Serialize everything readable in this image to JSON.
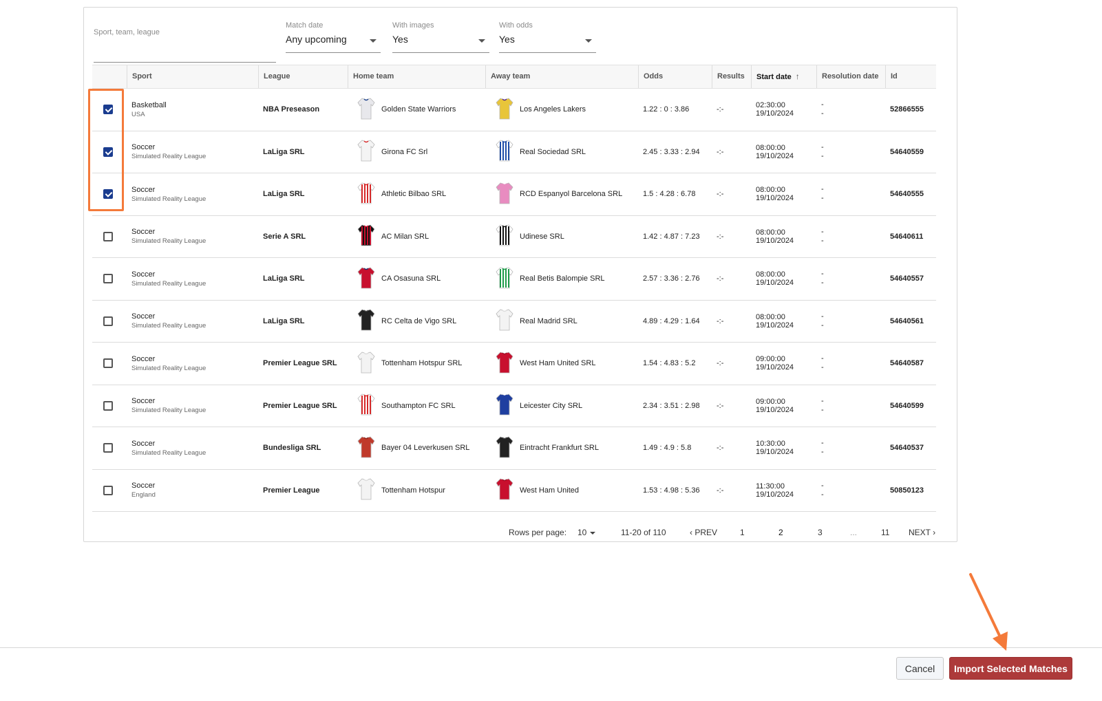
{
  "filters": {
    "search_placeholder": "Sport, team, league",
    "match_date_label": "Match date",
    "match_date_value": "Any upcoming",
    "with_images_label": "With images",
    "with_images_value": "Yes",
    "with_odds_label": "With odds",
    "with_odds_value": "Yes"
  },
  "columns": [
    "Sport",
    "League",
    "Home team",
    "Away team",
    "Odds",
    "Results",
    "Start date",
    "Resolution date",
    "Id"
  ],
  "rows": [
    {
      "checked": true,
      "sport": "Basketball",
      "region": "USA",
      "league": "NBA Preseason",
      "home": "Golden State Warriors",
      "away": "Los Angeles Lakers",
      "odds": "1.22 : 0 : 3.86",
      "results": "-:-",
      "time": "02:30:00",
      "date": "19/10/2024",
      "res1": "-",
      "res2": "-",
      "id": "52866555",
      "home_kit": "gsw",
      "away_kit": "lakers"
    },
    {
      "checked": true,
      "sport": "Soccer",
      "region": "Simulated Reality League",
      "league": "LaLiga SRL",
      "home": "Girona FC Srl",
      "away": "Real Sociedad SRL",
      "odds": "2.45 : 3.33 : 2.94",
      "results": "-:-",
      "time": "08:00:00",
      "date": "19/10/2024",
      "res1": "-",
      "res2": "-",
      "id": "54640559",
      "home_kit": "white-red",
      "away_kit": "blue-stripes"
    },
    {
      "checked": true,
      "sport": "Soccer",
      "region": "Simulated Reality League",
      "league": "LaLiga SRL",
      "home": "Athletic Bilbao SRL",
      "away": "RCD Espanyol Barcelona SRL",
      "odds": "1.5 : 4.28 : 6.78",
      "results": "-:-",
      "time": "08:00:00",
      "date": "19/10/2024",
      "res1": "-",
      "res2": "-",
      "id": "54640555",
      "home_kit": "red-stripes",
      "away_kit": "pink"
    },
    {
      "checked": false,
      "sport": "Soccer",
      "region": "Simulated Reality League",
      "league": "Serie A SRL",
      "home": "AC Milan SRL",
      "away": "Udinese SRL",
      "odds": "1.42 : 4.87 : 7.23",
      "results": "-:-",
      "time": "08:00:00",
      "date": "19/10/2024",
      "res1": "-",
      "res2": "-",
      "id": "54640611",
      "home_kit": "milan",
      "away_kit": "black-white"
    },
    {
      "checked": false,
      "sport": "Soccer",
      "region": "Simulated Reality League",
      "league": "LaLiga SRL",
      "home": "CA Osasuna SRL",
      "away": "Real Betis Balompie SRL",
      "odds": "2.57 : 3.36 : 2.76",
      "results": "-:-",
      "time": "08:00:00",
      "date": "19/10/2024",
      "res1": "-",
      "res2": "-",
      "id": "54640557",
      "home_kit": "osasuna",
      "away_kit": "green-stripes"
    },
    {
      "checked": false,
      "sport": "Soccer",
      "region": "Simulated Reality League",
      "league": "LaLiga SRL",
      "home": "RC Celta de Vigo SRL",
      "away": "Real Madrid SRL",
      "odds": "4.89 : 4.29 : 1.64",
      "results": "-:-",
      "time": "08:00:00",
      "date": "19/10/2024",
      "res1": "-",
      "res2": "-",
      "id": "54640561",
      "home_kit": "black",
      "away_kit": "white"
    },
    {
      "checked": false,
      "sport": "Soccer",
      "region": "Simulated Reality League",
      "league": "Premier League SRL",
      "home": "Tottenham Hotspur SRL",
      "away": "West Ham United SRL",
      "odds": "1.54 : 4.83 : 5.2",
      "results": "-:-",
      "time": "09:00:00",
      "date": "19/10/2024",
      "res1": "-",
      "res2": "-",
      "id": "54640587",
      "home_kit": "white",
      "away_kit": "red"
    },
    {
      "checked": false,
      "sport": "Soccer",
      "region": "Simulated Reality League",
      "league": "Premier League SRL",
      "home": "Southampton FC SRL",
      "away": "Leicester City SRL",
      "odds": "2.34 : 3.51 : 2.98",
      "results": "-:-",
      "time": "09:00:00",
      "date": "19/10/2024",
      "res1": "-",
      "res2": "-",
      "id": "54640599",
      "home_kit": "red-stripes",
      "away_kit": "blue"
    },
    {
      "checked": false,
      "sport": "Soccer",
      "region": "Simulated Reality League",
      "league": "Bundesliga SRL",
      "home": "Bayer 04 Leverkusen SRL",
      "away": "Eintracht Frankfurt SRL",
      "odds": "1.49 : 4.9 : 5.8",
      "results": "-:-",
      "time": "10:30:00",
      "date": "19/10/2024",
      "res1": "-",
      "res2": "-",
      "id": "54640537",
      "home_kit": "darkred",
      "away_kit": "black"
    },
    {
      "checked": false,
      "sport": "Soccer",
      "region": "England",
      "league": "Premier League",
      "home": "Tottenham Hotspur",
      "away": "West Ham United",
      "odds": "1.53 : 4.98 : 5.36",
      "results": "-:-",
      "time": "11:30:00",
      "date": "19/10/2024",
      "res1": "-",
      "res2": "-",
      "id": "50850123",
      "home_kit": "white",
      "away_kit": "red"
    }
  ],
  "pagination": {
    "rows_per_page_label": "Rows per page:",
    "rows_per_page": "10",
    "range": "11-20 of 110",
    "prev": "PREV",
    "pages": [
      "1",
      "2",
      "3",
      "...",
      "11"
    ],
    "current": "2",
    "next": "NEXT"
  },
  "footer": {
    "cancel": "Cancel",
    "import": "Import Selected Matches"
  },
  "colors": {
    "accent": "#1a3c8f",
    "primary_button": "#ad3a3a",
    "annotation": "#f47a3a"
  }
}
